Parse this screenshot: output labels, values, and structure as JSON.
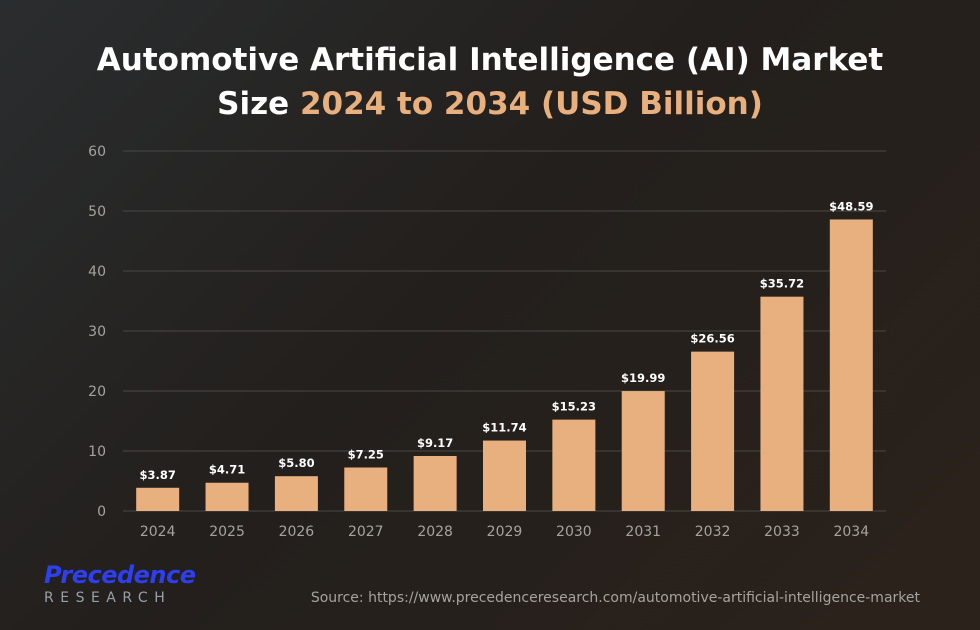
{
  "title": {
    "line1": "Automotive Artificial Intelligence (AI) Market",
    "line2_prefix": "Size ",
    "line2_highlight": "2024 to 2034 (USD Billion)"
  },
  "colors": {
    "bar": "#e8b07e",
    "highlight": "#e8b07e",
    "grid": "#4a4744",
    "axis_text": "#a6a39f",
    "label_text": "#ffffff",
    "logo": "#2e3ff0"
  },
  "chart_data": {
    "type": "bar",
    "title": "Automotive Artificial Intelligence (AI) Market Size 2024 to 2034 (USD Billion)",
    "categories": [
      "2024",
      "2025",
      "2026",
      "2027",
      "2028",
      "2029",
      "2030",
      "2031",
      "2032",
      "2033",
      "2034"
    ],
    "values": [
      3.87,
      4.71,
      5.8,
      7.25,
      9.17,
      11.74,
      15.23,
      19.99,
      26.56,
      35.72,
      48.59
    ],
    "labels": [
      "$3.87",
      "$4.71",
      "$5.80",
      "$7.25",
      "$9.17",
      "$11.74",
      "$15.23",
      "$19.99",
      "$26.56",
      "$35.72",
      "$48.59"
    ],
    "yticks": [
      0,
      10,
      20,
      30,
      40,
      50,
      60
    ],
    "ylim": [
      0,
      60
    ],
    "xlabel": "",
    "ylabel": "",
    "grid": true
  },
  "logo": {
    "line1": "Precedence",
    "line2": "RESEARCH"
  },
  "source": "Source: https://www.precedenceresearch.com/automotive-artificial-intelligence-market"
}
